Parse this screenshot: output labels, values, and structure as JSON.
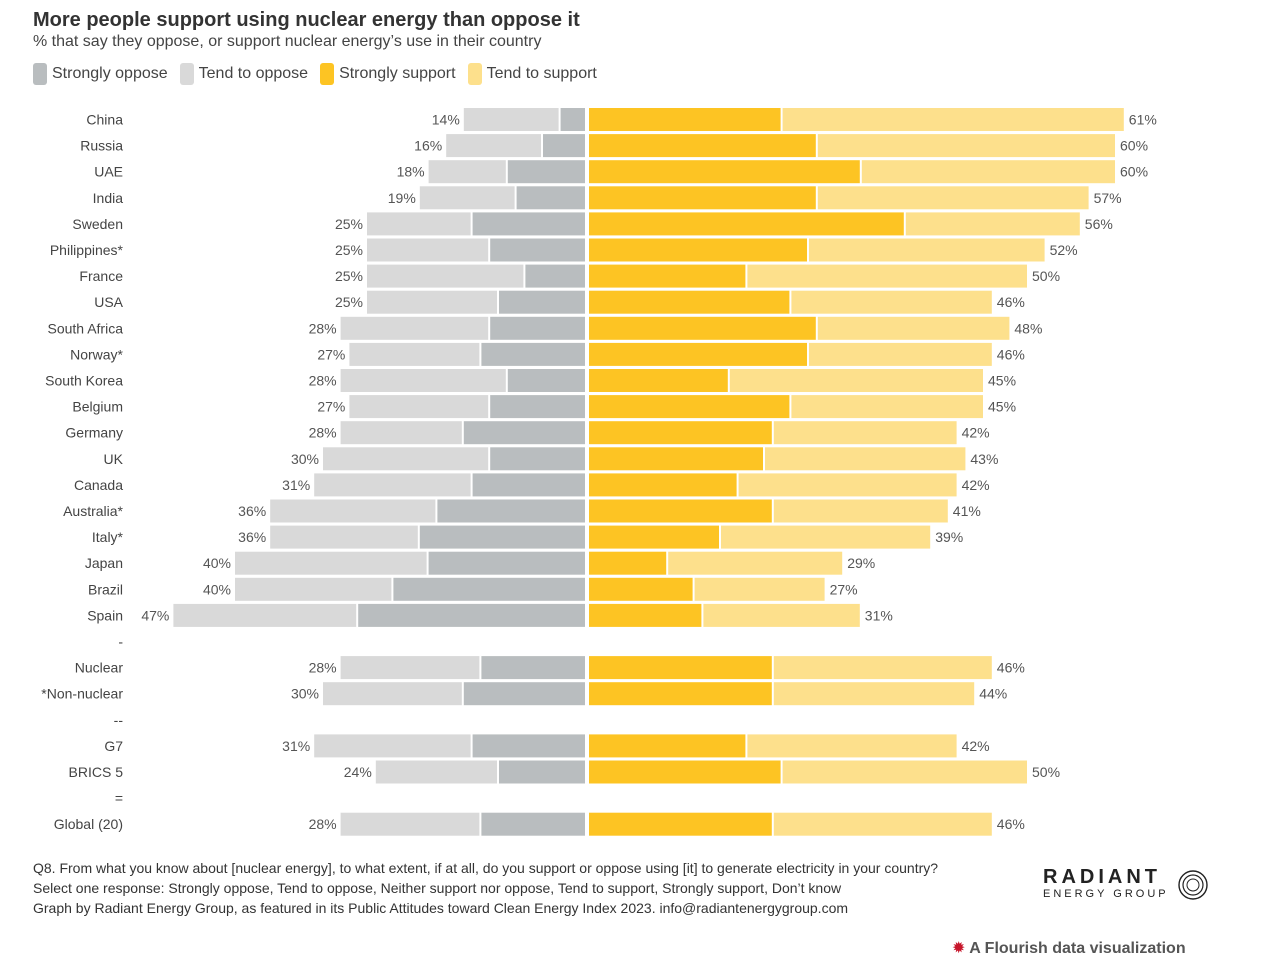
{
  "title": "More people support using nuclear energy than oppose it",
  "subtitle": "% that say they oppose, or support nuclear energy’s use in their country",
  "legend": [
    {
      "label": "Strongly oppose",
      "color": "#b9bdbf"
    },
    {
      "label": "Tend to oppose",
      "color": "#d9d9d9"
    },
    {
      "label": "Strongly support",
      "color": "#fdc423"
    },
    {
      "label": "Tend to support",
      "color": "#fde08c"
    }
  ],
  "chart_data": {
    "type": "bar",
    "orientation": "horizontal-diverging",
    "categories": [
      "China",
      "Russia",
      "UAE",
      "India",
      "Sweden",
      "Philippines*",
      "France",
      "USA",
      "South Africa",
      "Norway*",
      "South Korea",
      "Belgium",
      "Germany",
      "UK",
      "Canada",
      "Australia*",
      "Italy*",
      "Japan",
      "Brazil",
      "Spain",
      "-",
      "Nuclear",
      "*Non-nuclear",
      "--",
      "G7",
      "BRICS 5",
      "=",
      "Global (20)"
    ],
    "series": [
      {
        "name": "Strongly oppose",
        "values": [
          3,
          5,
          9,
          8,
          13,
          11,
          7,
          10,
          11,
          12,
          9,
          11,
          14,
          11,
          13,
          17,
          19,
          18,
          22,
          26,
          null,
          12,
          14,
          null,
          13,
          10,
          null,
          12
        ]
      },
      {
        "name": "Tend to oppose",
        "values": [
          11,
          11,
          9,
          11,
          12,
          14,
          18,
          15,
          17,
          15,
          19,
          16,
          14,
          19,
          18,
          19,
          17,
          22,
          18,
          21,
          null,
          16,
          16,
          null,
          18,
          14,
          null,
          16
        ]
      },
      {
        "name": "Strongly support",
        "values": [
          22,
          26,
          31,
          26,
          36,
          25,
          18,
          23,
          26,
          25,
          16,
          23,
          21,
          20,
          17,
          21,
          15,
          9,
          12,
          13,
          null,
          21,
          21,
          null,
          18,
          22,
          null,
          21
        ]
      },
      {
        "name": "Tend to support",
        "values": [
          39,
          34,
          29,
          31,
          20,
          27,
          32,
          23,
          22,
          21,
          29,
          22,
          21,
          23,
          25,
          20,
          24,
          20,
          15,
          18,
          null,
          25,
          23,
          null,
          24,
          28,
          null,
          25
        ]
      }
    ],
    "oppose_totals": [
      "14%",
      "16%",
      "18%",
      "19%",
      "25%",
      "25%",
      "25%",
      "25%",
      "28%",
      "27%",
      "28%",
      "27%",
      "28%",
      "30%",
      "31%",
      "36%",
      "36%",
      "40%",
      "40%",
      "47%",
      "",
      "28%",
      "30%",
      "",
      "31%",
      "24%",
      "",
      "28%"
    ],
    "support_totals": [
      "61%",
      "60%",
      "60%",
      "57%",
      "56%",
      "52%",
      "50%",
      "46%",
      "48%",
      "46%",
      "45%",
      "45%",
      "42%",
      "43%",
      "42%",
      "41%",
      "39%",
      "29%",
      "27%",
      "31%",
      "",
      "46%",
      "44%",
      "",
      "42%",
      "50%",
      "",
      "46%"
    ],
    "legend_position": "top-left",
    "grid": false
  },
  "footnote": [
    "Q8. From what you know about [nuclear energy], to what extent, if at all, do you support or oppose using [it] to generate electricity in your country?",
    "Select one response: Strongly oppose, Tend to oppose, Neither support nor oppose, Tend to support, Strongly support, Don’t know",
    "Graph by Radiant Energy Group, as featured in its Public Attitudes toward Clean Energy Index 2023. info@radiantenergygroup.com"
  ],
  "logo": {
    "name": "RADIANT",
    "sub": "ENERGY GROUP"
  },
  "credit": "A Flourish data visualization"
}
